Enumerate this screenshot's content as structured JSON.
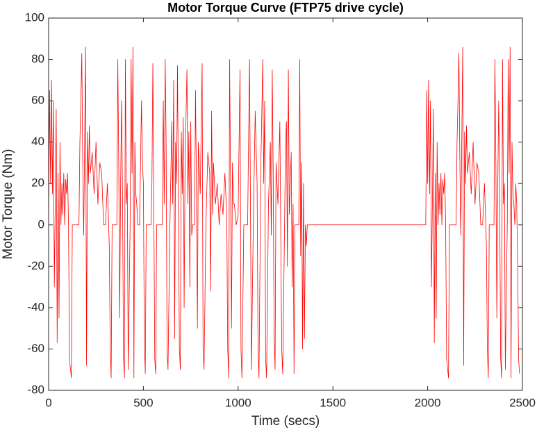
{
  "chart_data": {
    "type": "line",
    "title": "Motor Torque Curve (FTP75 drive cycle)",
    "x_label": "Time (secs)",
    "y_label": "Motor Torque (Nm)",
    "xlim": [
      0,
      2500
    ],
    "xticks": [
      0,
      500,
      1000,
      1500,
      2000,
      2500
    ],
    "ylim": [
      -80,
      100
    ],
    "yticks": [
      -80,
      -60,
      -40,
      -20,
      0,
      20,
      40,
      60,
      80,
      100
    ],
    "grid": false,
    "series": [
      {
        "color": "#ff0000",
        "x": [
          0,
          5,
          10,
          15,
          20,
          25,
          30,
          35,
          40,
          45,
          50,
          55,
          60,
          65,
          70,
          75,
          80,
          85,
          90,
          95,
          100,
          105,
          110,
          120,
          125,
          160,
          165,
          170,
          175,
          180,
          185,
          190,
          195,
          200,
          205,
          210,
          215,
          220,
          230,
          240,
          250,
          260,
          270,
          280,
          290,
          300,
          310,
          320,
          325,
          330,
          335,
          360,
          365,
          370,
          375,
          380,
          385,
          390,
          395,
          400,
          405,
          410,
          415,
          420,
          430,
          435,
          440,
          445,
          450,
          455,
          460,
          465,
          470,
          480,
          490,
          495,
          500,
          505,
          510,
          515,
          540,
          545,
          550,
          555,
          560,
          565,
          570,
          600,
          605,
          610,
          615,
          620,
          625,
          630,
          640,
          650,
          655,
          660,
          665,
          670,
          675,
          680,
          685,
          690,
          695,
          700,
          705,
          710,
          715,
          720,
          730,
          735,
          740,
          745,
          750,
          755,
          760,
          770,
          775,
          780,
          785,
          790,
          800,
          810,
          815,
          820,
          830,
          840,
          850,
          855,
          860,
          865,
          870,
          880,
          890,
          900,
          910,
          920,
          930,
          940,
          945,
          950,
          955,
          960,
          965,
          970,
          975,
          980,
          990,
          1000,
          1010,
          1015,
          1020,
          1030,
          1050,
          1055,
          1060,
          1065,
          1070,
          1080,
          1090,
          1100,
          1105,
          1110,
          1120,
          1130,
          1135,
          1140,
          1145,
          1150,
          1160,
          1170,
          1175,
          1180,
          1185,
          1190,
          1195,
          1200,
          1210,
          1220,
          1230,
          1235,
          1245,
          1250,
          1255,
          1260,
          1265,
          1270,
          1280,
          1285,
          1290,
          1295,
          1300,
          1320,
          1325,
          1330,
          1335,
          1340,
          1345,
          1350,
          1355,
          1360,
          1365,
          1370,
          1990,
          1995,
          2000,
          2005,
          2010,
          2015,
          2020,
          2025,
          2030,
          2035,
          2040,
          2045,
          2050,
          2055,
          2060,
          2065,
          2070,
          2075,
          2080,
          2085,
          2090,
          2095,
          2100,
          2110,
          2115,
          2150,
          2155,
          2160,
          2165,
          2170,
          2175,
          2180,
          2185,
          2190,
          2195,
          2200,
          2205,
          2210,
          2220,
          2230,
          2240,
          2250,
          2260,
          2270,
          2280,
          2290,
          2300,
          2310,
          2315,
          2320,
          2325,
          2350,
          2355,
          2360,
          2365,
          2370,
          2375,
          2380,
          2385,
          2390,
          2395,
          2400,
          2405,
          2410,
          2420,
          2425,
          2430,
          2435,
          2440,
          2445,
          2450,
          2455,
          2460,
          2465,
          2470,
          2475,
          2480,
          2485
        ],
        "values": [
          0,
          65,
          20,
          70,
          15,
          60,
          -30,
          10,
          56,
          -57,
          25,
          -45,
          40,
          0,
          20,
          5,
          25,
          0,
          22,
          15,
          25,
          0,
          -65,
          -74,
          0,
          0,
          40,
          60,
          83,
          30,
          -5,
          40,
          86,
          -68,
          45,
          20,
          48,
          25,
          35,
          15,
          40,
          10,
          30,
          25,
          0,
          0,
          20,
          -10,
          -60,
          -74,
          0,
          0,
          80,
          30,
          -45,
          20,
          60,
          15,
          -64,
          -74,
          80,
          10,
          20,
          -70,
          0,
          80,
          25,
          86,
          -74,
          40,
          15,
          10,
          0,
          0,
          60,
          30,
          20,
          -55,
          -72,
          0,
          0,
          20,
          78,
          10,
          -65,
          -72,
          0,
          0,
          60,
          10,
          80,
          40,
          -62,
          -70,
          0,
          50,
          10,
          70,
          -55,
          40,
          20,
          77,
          10,
          -60,
          -70,
          45,
          15,
          52,
          -40,
          30,
          75,
          10,
          45,
          -30,
          50,
          -5,
          0,
          0,
          65,
          20,
          -50,
          40,
          15,
          78,
          -60,
          -70,
          0,
          35,
          25,
          -32,
          55,
          5,
          30,
          10,
          20,
          0,
          15,
          5,
          25,
          5,
          -60,
          -74,
          80,
          20,
          -50,
          30,
          10,
          10,
          0,
          5,
          75,
          -60,
          -74,
          0,
          0,
          40,
          80,
          10,
          -70,
          0,
          55,
          20,
          -60,
          -74,
          30,
          80,
          20,
          60,
          -65,
          -74,
          10,
          40,
          -5,
          75,
          25,
          -55,
          -70,
          30,
          10,
          50,
          -60,
          -72,
          0,
          40,
          50,
          -20,
          75,
          5,
          35,
          -30,
          10,
          -72,
          0,
          0,
          80,
          -15,
          30,
          -60,
          20,
          -55,
          0,
          -10,
          0,
          0,
          0,
          65,
          20,
          70,
          15,
          60,
          -30,
          10,
          56,
          -57,
          25,
          -45,
          40,
          0,
          20,
          5,
          25,
          0,
          22,
          15,
          25,
          0,
          -65,
          -74,
          0,
          0,
          40,
          60,
          83,
          30,
          -5,
          40,
          86,
          -68,
          45,
          20,
          48,
          25,
          35,
          15,
          40,
          10,
          30,
          25,
          0,
          0,
          20,
          -10,
          -60,
          -74,
          0,
          0,
          80,
          30,
          -45,
          20,
          60,
          15,
          -64,
          -74,
          80,
          10,
          20,
          -70,
          0,
          80,
          25,
          86,
          -74,
          40,
          15,
          10,
          0,
          20,
          10,
          -20,
          -65,
          -72
        ]
      }
    ]
  }
}
